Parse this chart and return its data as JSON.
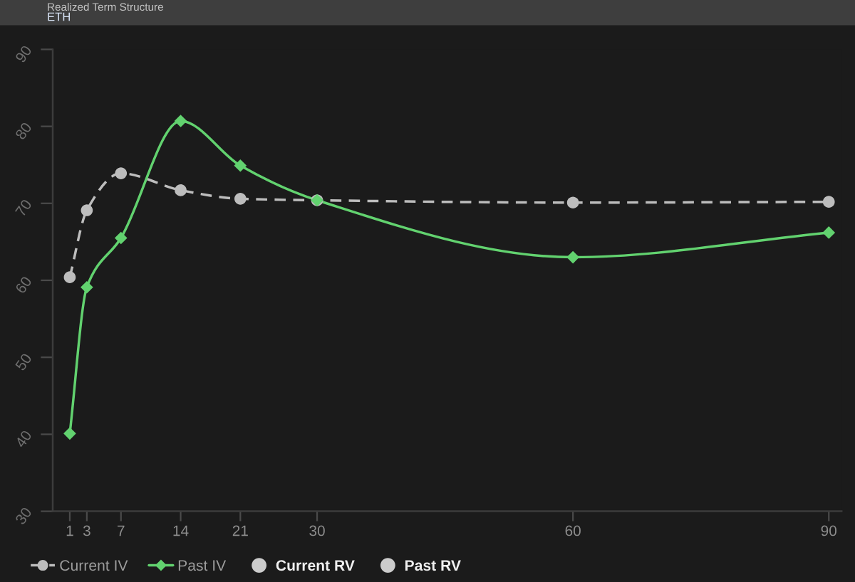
{
  "chart_data": {
    "type": "line",
    "title": "Realized Term Structure",
    "subtitle": "ETH",
    "x": [
      1,
      3,
      7,
      14,
      21,
      30,
      60,
      90
    ],
    "series": [
      {
        "name": "Current IV",
        "color": "#bdbdbd",
        "marker": "circle",
        "line_style": "dashed",
        "values": [
          60.4,
          69.1,
          73.9,
          71.7,
          70.6,
          70.4,
          70.1,
          70.2
        ]
      },
      {
        "name": "Past IV",
        "color": "#62d26f",
        "marker": "diamond",
        "line_style": "solid",
        "values": [
          40.1,
          59.1,
          65.5,
          80.7,
          74.9,
          70.4,
          63.0,
          66.2
        ]
      },
      {
        "name": "Current RV",
        "type": "scatter",
        "color": "#cccccc",
        "marker": "circle",
        "values": [
          null,
          null,
          null,
          null,
          null,
          null,
          null,
          null
        ]
      },
      {
        "name": "Past RV",
        "type": "scatter",
        "color": "#cccccc",
        "marker": "circle",
        "values": [
          null,
          null,
          null,
          null,
          null,
          null,
          null,
          null
        ]
      }
    ],
    "xlim": [
      -1,
      91.5
    ],
    "xticks": [
      1,
      3,
      7,
      14,
      21,
      30,
      60,
      90
    ],
    "ylim": [
      30,
      90
    ],
    "yticks": [
      30,
      40,
      50,
      60,
      70,
      80,
      90
    ],
    "legend": "bottom left"
  }
}
